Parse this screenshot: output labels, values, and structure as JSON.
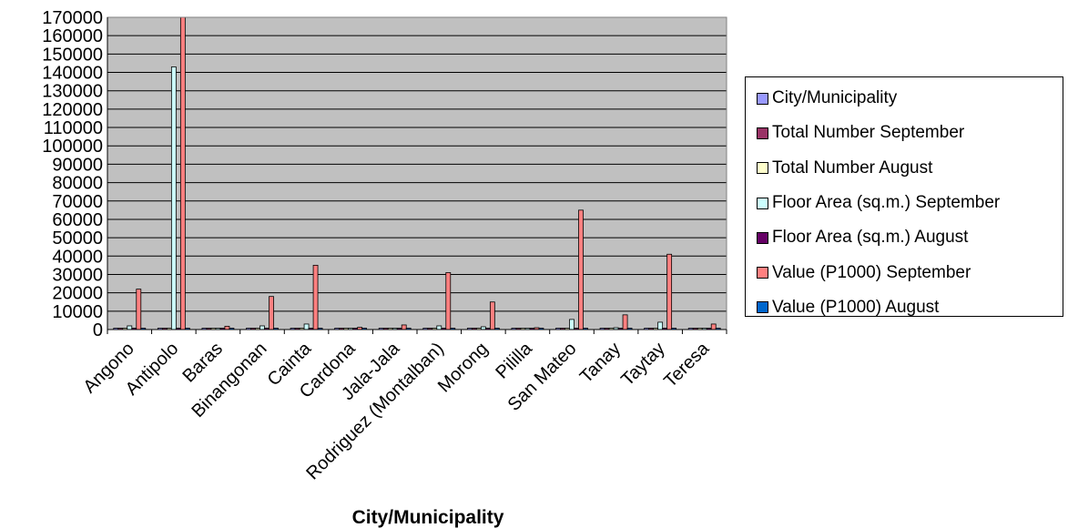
{
  "chart_data": {
    "type": "bar",
    "xlabel": "City/Municipality",
    "ylabel": "",
    "ylim": [
      0,
      170000
    ],
    "ytick_step": 10000,
    "grid": true,
    "legend_position": "right",
    "plot_background": "#c0c0c0",
    "categories": [
      "Angono",
      "Antipolo",
      "Baras",
      "Binangonan",
      "Cainta",
      "Cardona",
      "Jala-Jala",
      "Rodriguez (Montalban)",
      "Morong",
      "Pililla",
      "San Mateo",
      "Tanay",
      "Taytay",
      "Teresa"
    ],
    "series": [
      {
        "name": "City/Municipality",
        "color": "#9999ff",
        "values": [
          0,
          0,
          0,
          0,
          0,
          0,
          0,
          0,
          0,
          0,
          0,
          0,
          0,
          0
        ]
      },
      {
        "name": "Total Number September",
        "color": "#993366",
        "values": [
          150,
          500,
          40,
          120,
          250,
          30,
          25,
          180,
          80,
          30,
          300,
          60,
          250,
          30
        ]
      },
      {
        "name": "Total Number August",
        "color": "#ffffcc",
        "values": [
          200,
          400,
          50,
          150,
          300,
          40,
          30,
          200,
          100,
          40,
          400,
          70,
          300,
          40
        ]
      },
      {
        "name": "Floor Area (sq.m.) September",
        "color": "#ccffff",
        "values": [
          2000,
          143000,
          500,
          2000,
          3000,
          600,
          500,
          2000,
          1500,
          500,
          5500,
          1000,
          4000,
          600
        ]
      },
      {
        "name": "Floor Area (sq.m.) August",
        "color": "#660066",
        "values": [
          300,
          600,
          80,
          250,
          400,
          60,
          50,
          300,
          150,
          60,
          500,
          120,
          400,
          60
        ]
      },
      {
        "name": "Value (P1000) September",
        "color": "#ff8080",
        "values": [
          22000,
          170000,
          1800,
          18000,
          35000,
          1200,
          2500,
          31000,
          15000,
          1000,
          65000,
          8000,
          41000,
          3000
        ]
      },
      {
        "name": "Value (P1000) August",
        "color": "#0066cc",
        "values": [
          0,
          0,
          0,
          0,
          0,
          0,
          0,
          0,
          0,
          0,
          0,
          0,
          0,
          0
        ]
      }
    ]
  }
}
